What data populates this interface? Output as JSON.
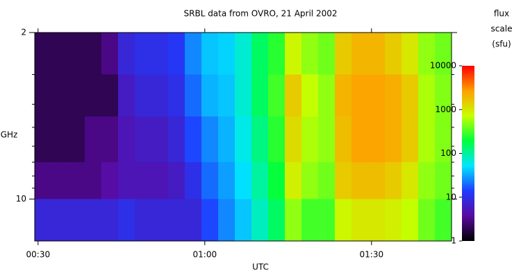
{
  "chart_data": {
    "type": "heatmap",
    "title": "SRBL data from OVRO, 21 April 2002",
    "xlabel": "UTC",
    "ylabel": "GHz",
    "xlim": [
      29.4,
      104.4
    ],
    "xticks": [
      {
        "value": 30,
        "label": "00:30"
      },
      {
        "value": 60,
        "label": "01:00"
      },
      {
        "value": 90,
        "label": "01:30"
      }
    ],
    "ylim": [
      15,
      2
    ],
    "ylog": true,
    "yticks": [
      2,
      10
    ],
    "yticks_minor": [
      3,
      4,
      5,
      6,
      7,
      8,
      9
    ],
    "x_bins": [
      29.4,
      32.4,
      35.4,
      38.4,
      41.4,
      44.4,
      47.4,
      50.4,
      53.4,
      56.4,
      59.4,
      62.4,
      65.4,
      68.4,
      71.4,
      74.4,
      77.4,
      80.4,
      83.4,
      86.4,
      89.4,
      92.4,
      95.4,
      98.4,
      101.4,
      104.4
    ],
    "y_bins": [
      2,
      3,
      4.5,
      7,
      10,
      15
    ],
    "values": [
      [
        2,
        2,
        2,
        2,
        3,
        8,
        10,
        10,
        12,
        25,
        40,
        45,
        70,
        150,
        250,
        800,
        500,
        400,
        1500,
        2000,
        2000,
        1500,
        1000,
        500,
        400
      ],
      [
        2,
        2,
        2,
        2,
        2,
        6,
        8,
        8,
        10,
        20,
        35,
        40,
        70,
        150,
        300,
        1500,
        700,
        500,
        2000,
        2500,
        2500,
        2200,
        1500,
        600,
        450
      ],
      [
        2,
        2,
        2,
        3,
        3,
        5,
        6,
        6,
        8,
        15,
        25,
        35,
        60,
        120,
        250,
        1200,
        600,
        500,
        1800,
        2500,
        2500,
        2200,
        1500,
        600,
        450
      ],
      [
        3,
        3,
        3,
        3,
        4,
        5,
        5,
        5,
        6,
        10,
        20,
        30,
        50,
        100,
        200,
        900,
        500,
        400,
        1500,
        1800,
        1800,
        1500,
        1000,
        500,
        400
      ],
      [
        8,
        8,
        8,
        8,
        8,
        10,
        8,
        8,
        8,
        8,
        15,
        25,
        40,
        80,
        150,
        500,
        300,
        300,
        800,
        1000,
        1000,
        900,
        700,
        400,
        300
      ]
    ],
    "colormap": [
      "#000000",
      "#5a0aa0",
      "#1e3cff",
      "#00e6ff",
      "#00ff3c",
      "#c8ff00",
      "#ffa000",
      "#ff0000"
    ],
    "colorbar": {
      "lim": [
        1,
        10000
      ],
      "log": true,
      "ticks": [
        1,
        10,
        100,
        1000,
        10000
      ],
      "label": [
        "flux",
        "scale",
        "(sfu)"
      ]
    }
  }
}
